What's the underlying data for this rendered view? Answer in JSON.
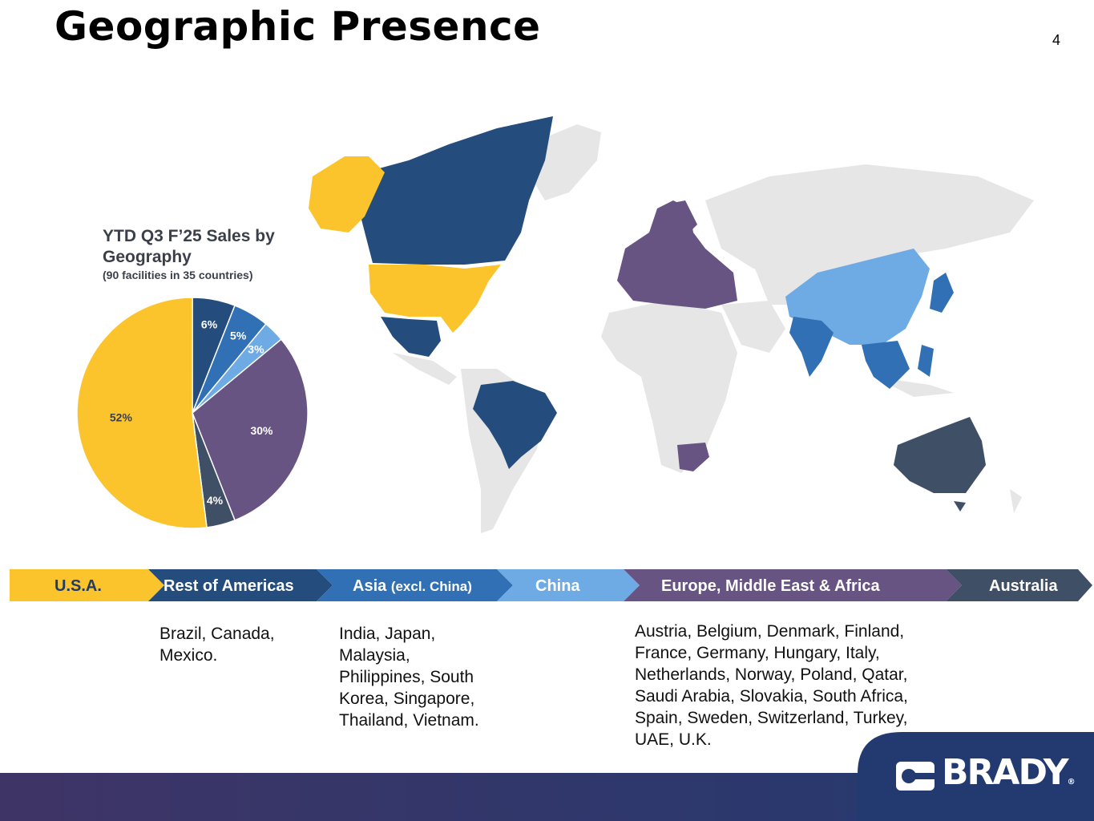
{
  "slide": {
    "title": "Geographic Presence",
    "page_number": "4"
  },
  "chart_data": {
    "type": "pie",
    "title": "YTD Q3 F’25 Sales by Geography",
    "subtitle": "(90 facilities in 35 countries)",
    "start_angle_deg": 0,
    "direction": "clockwise",
    "slices": [
      {
        "label": "6%",
        "value": 6,
        "region": "Rest of Americas",
        "color": "#244c7c"
      },
      {
        "label": "5%",
        "value": 5,
        "region": "Asia (excl. China)",
        "color": "#3170b4"
      },
      {
        "label": "3%",
        "value": 3,
        "region": "China",
        "color": "#6eaae4"
      },
      {
        "label": "30%",
        "value": 30,
        "region": "Europe, Middle East & Africa",
        "color": "#675483"
      },
      {
        "label": "4%",
        "value": 4,
        "region": "Australia",
        "color": "#3f4f66"
      },
      {
        "label": "52%",
        "value": 52,
        "region": "U.S.A.",
        "color": "#fcc42c"
      }
    ]
  },
  "ribbon": {
    "segments": [
      {
        "label": "U.S.A.",
        "color": "#fcc42c",
        "text_color": "#1f3b66"
      },
      {
        "label": "Rest of Americas",
        "color": "#244c7c",
        "text_color": "#ffffff"
      },
      {
        "label": "Asia",
        "label_small": "(excl. China)",
        "color": "#3170b4",
        "text_color": "#ffffff"
      },
      {
        "label": "China",
        "color": "#6eaae4",
        "text_color": "#ffffff"
      },
      {
        "label": "Europe, Middle East & Africa",
        "color": "#675483",
        "text_color": "#ffffff"
      },
      {
        "label": "Australia",
        "color": "#3f4f66",
        "text_color": "#ffffff"
      }
    ]
  },
  "countries": {
    "rest_of_americas": "Brazil, Canada, Mexico.",
    "asia": "India, Japan, Malaysia, Philippines, South Korea, Singapore, Thailand, Vietnam.",
    "emea": "Austria, Belgium, Denmark, Finland, France, Germany, Hungary, Italy, Netherlands, Norway, Poland, Qatar, Saudi Arabia, Slovakia, South Africa, Spain, Sweden, Switzerland, Turkey, UAE, U.K."
  },
  "map": {
    "base_color": "#e6e6e6"
  },
  "brand": {
    "name": "BRADY",
    "registered": "®",
    "icon": "brady-logo-icon"
  }
}
